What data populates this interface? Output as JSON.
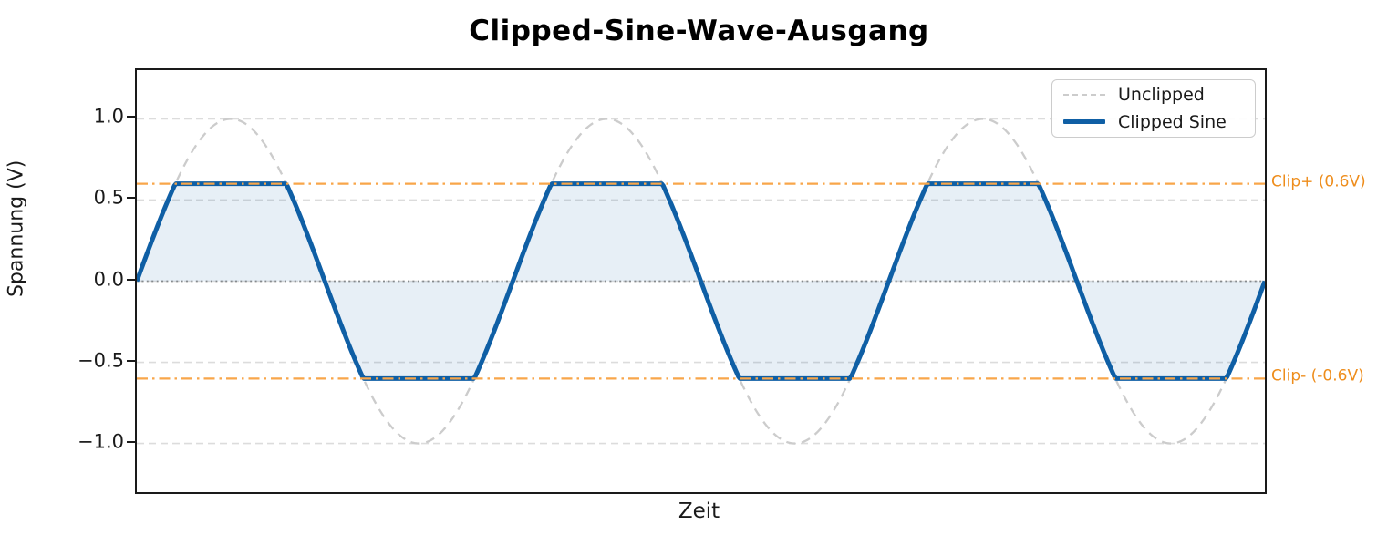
{
  "chart_data": {
    "type": "line",
    "title": "Clipped-Sine-Wave-Ausgang",
    "xlabel": "Zeit",
    "ylabel": "Spannung (V)",
    "xlim_cycles": [
      0,
      3
    ],
    "ylim": [
      -1.3,
      1.3
    ],
    "yticks": [
      {
        "value": 1.0,
        "label": "1.0"
      },
      {
        "value": 0.5,
        "label": "0.5"
      },
      {
        "value": 0.0,
        "label": "0.0"
      },
      {
        "value": -0.5,
        "label": "−0.5"
      },
      {
        "value": -1.0,
        "label": "−1.0"
      }
    ],
    "x_tick_labels": [],
    "grid": {
      "on": true,
      "style": "dashed",
      "color": "#dcdcdc"
    },
    "zero_line": {
      "value": 0.0,
      "style": "dotted",
      "color": "#8c8c8c"
    },
    "series": [
      {
        "name": "Unclipped",
        "shape": "sine",
        "amplitude": 1.0,
        "cycles": 3,
        "phase_start": 0,
        "color": "#cccccc",
        "style": "dashed",
        "width": 2.3
      },
      {
        "name": "Clipped Sine",
        "shape": "clipped-sine",
        "amplitude": 1.0,
        "clip_level": 0.6,
        "cycles": 3,
        "phase_start": 0,
        "color": "#0f5fa5",
        "style": "solid",
        "width": 5,
        "fill_to_zero": true,
        "fill_color": "rgba(15,95,165,0.10)"
      }
    ],
    "clip_lines": [
      {
        "label": "Clip+ (0.6V)",
        "value": 0.6,
        "line_color": "#f8a64a",
        "text_color": "#ee8d1c",
        "style": "dashdot"
      },
      {
        "label": "Clip- (-0.6V)",
        "value": -0.6,
        "line_color": "#f8a64a",
        "text_color": "#ee8d1c",
        "style": "dashdot"
      }
    ],
    "legend": {
      "position": "upper right",
      "entries": [
        {
          "label": "Unclipped",
          "swatch": "dashed-gray-line"
        },
        {
          "label": "Clipped Sine",
          "swatch": "thick-blue-line"
        }
      ]
    }
  }
}
